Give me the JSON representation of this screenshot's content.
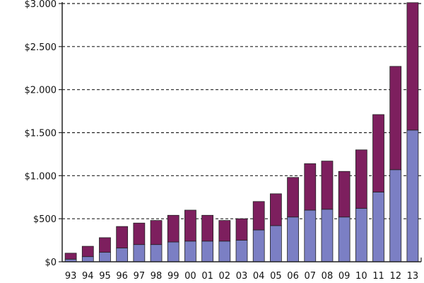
{
  "chart_data": {
    "type": "bar",
    "stacked": true,
    "categories": [
      "93",
      "94",
      "95",
      "96",
      "97",
      "98",
      "99",
      "00",
      "01",
      "02",
      "03",
      "04",
      "05",
      "06",
      "07",
      "08",
      "09",
      "10",
      "11",
      "12",
      "13"
    ],
    "series": [
      {
        "values": [
          30,
          60,
          110,
          160,
          200,
          200,
          230,
          240,
          240,
          240,
          250,
          370,
          420,
          520,
          600,
          610,
          520,
          620,
          810,
          1070,
          1530
        ]
      },
      {
        "values": [
          70,
          120,
          170,
          250,
          250,
          280,
          310,
          360,
          300,
          240,
          250,
          330,
          370,
          460,
          540,
          560,
          530,
          680,
          900,
          1200,
          1480
        ]
      }
    ],
    "ytick_labels": [
      "$0",
      "$500",
      "$1.000",
      "$1.500",
      "$2.000",
      "$2.500",
      "$3.000"
    ],
    "ytick_values": [
      0,
      500,
      1000,
      1500,
      2000,
      2500,
      3000
    ],
    "ylim": [
      0,
      3000
    ],
    "grid": "horizontal dashed",
    "colors": {
      "bottom_fill": "#7b7fc4",
      "top_fill": "#7d1f5e",
      "bar_stroke": "#222222",
      "grid": "#222222",
      "axis": "#222222"
    }
  }
}
